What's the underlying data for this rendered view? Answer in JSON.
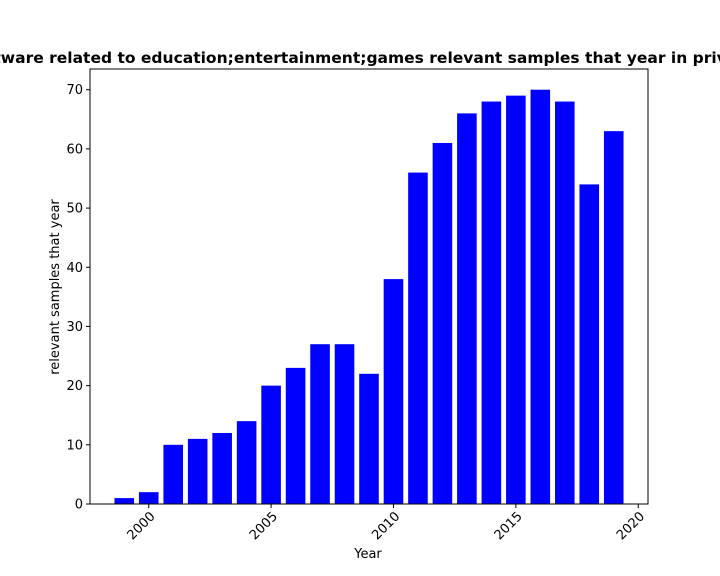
{
  "chart_data": {
    "type": "bar",
    "title": "Software related to education;entertainment;games relevant samples that year in private",
    "xlabel": "Year",
    "ylabel": "relevant samples that year",
    "x": [
      1999,
      2000,
      2001,
      2002,
      2003,
      2004,
      2005,
      2006,
      2007,
      2008,
      2009,
      2010,
      2011,
      2012,
      2013,
      2014,
      2015,
      2016,
      2017,
      2018,
      2019
    ],
    "values": [
      1,
      2,
      10,
      11,
      12,
      14,
      20,
      23,
      27,
      27,
      22,
      38,
      56,
      61,
      66,
      68,
      69,
      70,
      68,
      54,
      63
    ],
    "xlim": [
      1997.6,
      2020.4
    ],
    "ylim": [
      0,
      73.5
    ],
    "xticks": [
      2000,
      2005,
      2010,
      2015,
      2020
    ],
    "yticks": [
      0,
      10,
      20,
      30,
      40,
      50,
      60,
      70
    ],
    "bar_color": "#0000ff",
    "grid": false
  }
}
